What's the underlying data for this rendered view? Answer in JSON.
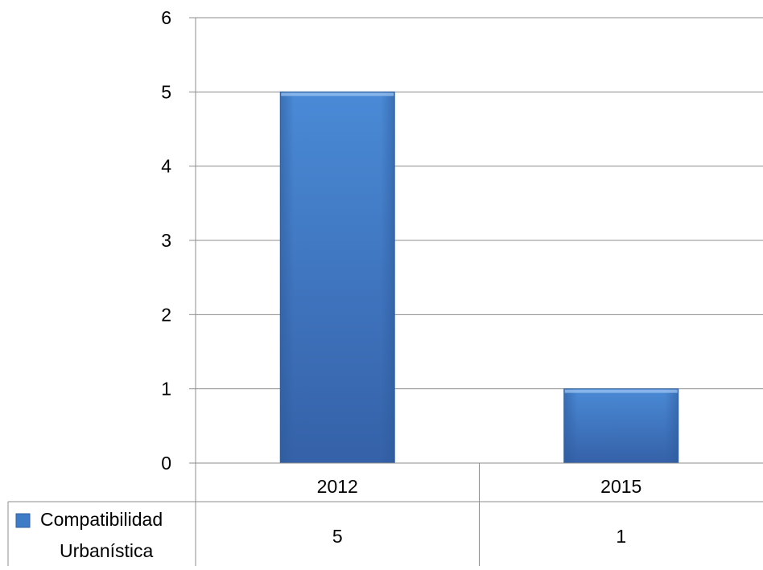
{
  "chart_data": {
    "type": "bar",
    "categories": [
      "2012",
      "2015"
    ],
    "series": [
      {
        "name": "Compatibilidad Urbanística",
        "values": [
          5,
          1
        ],
        "color": "#3f7cc8"
      }
    ],
    "ylim": [
      0,
      6
    ],
    "yticks": [
      0,
      1,
      2,
      3,
      4,
      5,
      6
    ],
    "grid": true,
    "legend": "data-table-left",
    "data_table": {
      "series_label_lines": [
        "Compatibilidad",
        "Urbanística"
      ],
      "values": [
        "5",
        "1"
      ]
    }
  }
}
